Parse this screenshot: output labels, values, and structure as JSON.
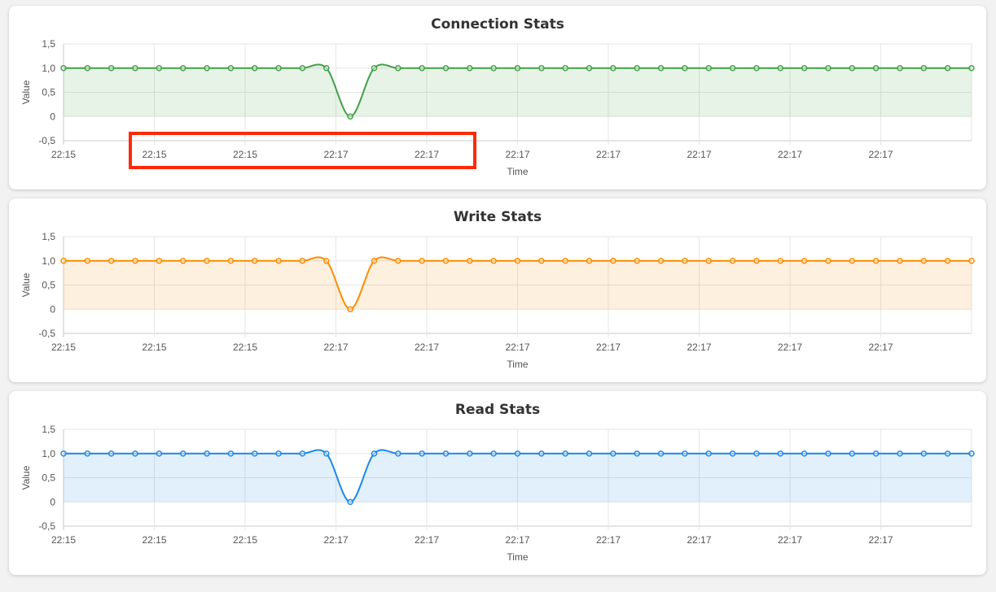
{
  "page": {
    "highlight_color": "#ff2a0a"
  },
  "chart_data": [
    {
      "type": "area",
      "title": "Connection Stats",
      "xlabel": "Time",
      "ylabel": "Value",
      "ylim": [
        -0.5,
        1.5
      ],
      "y_ticks": [
        "1,5",
        "1,0",
        "0,5",
        "0",
        "-0,5"
      ],
      "x_ticks": [
        "22:15",
        "22:15",
        "22:15",
        "22:17",
        "22:17",
        "22:17",
        "22:17",
        "22:17",
        "22:17",
        "22:17"
      ],
      "grid": true,
      "series": [
        {
          "color": "#43a047",
          "fill": "rgba(67,160,71,0.13)",
          "values": [
            1,
            1,
            1,
            1,
            1,
            1,
            1,
            1,
            1,
            1,
            1,
            1,
            0,
            1,
            1,
            1,
            1,
            1,
            1,
            1,
            1,
            1,
            1,
            1,
            1,
            1,
            1,
            1,
            1,
            1,
            1,
            1,
            1,
            1,
            1,
            1,
            1,
            1,
            1
          ]
        }
      ]
    },
    {
      "type": "area",
      "title": "Write Stats",
      "xlabel": "Time",
      "ylabel": "Value",
      "ylim": [
        -0.5,
        1.5
      ],
      "y_ticks": [
        "1,5",
        "1,0",
        "0,5",
        "0",
        "-0,5"
      ],
      "x_ticks": [
        "22:15",
        "22:15",
        "22:15",
        "22:17",
        "22:17",
        "22:17",
        "22:17",
        "22:17",
        "22:17",
        "22:17"
      ],
      "grid": true,
      "series": [
        {
          "color": "#fb8c00",
          "fill": "rgba(251,140,0,0.13)",
          "values": [
            1,
            1,
            1,
            1,
            1,
            1,
            1,
            1,
            1,
            1,
            1,
            1,
            0,
            1,
            1,
            1,
            1,
            1,
            1,
            1,
            1,
            1,
            1,
            1,
            1,
            1,
            1,
            1,
            1,
            1,
            1,
            1,
            1,
            1,
            1,
            1,
            1,
            1,
            1
          ]
        }
      ]
    },
    {
      "type": "area",
      "title": "Read Stats",
      "xlabel": "Time",
      "ylabel": "Value",
      "ylim": [
        -0.5,
        1.5
      ],
      "y_ticks": [
        "1,5",
        "1,0",
        "0,5",
        "0",
        "-0,5"
      ],
      "x_ticks": [
        "22:15",
        "22:15",
        "22:15",
        "22:17",
        "22:17",
        "22:17",
        "22:17",
        "22:17",
        "22:17",
        "22:17"
      ],
      "grid": true,
      "series": [
        {
          "color": "#1e88e5",
          "fill": "rgba(30,136,229,0.13)",
          "values": [
            1,
            1,
            1,
            1,
            1,
            1,
            1,
            1,
            1,
            1,
            1,
            1,
            0,
            1,
            1,
            1,
            1,
            1,
            1,
            1,
            1,
            1,
            1,
            1,
            1,
            1,
            1,
            1,
            1,
            1,
            1,
            1,
            1,
            1,
            1,
            1,
            1,
            1,
            1
          ]
        }
      ]
    }
  ]
}
